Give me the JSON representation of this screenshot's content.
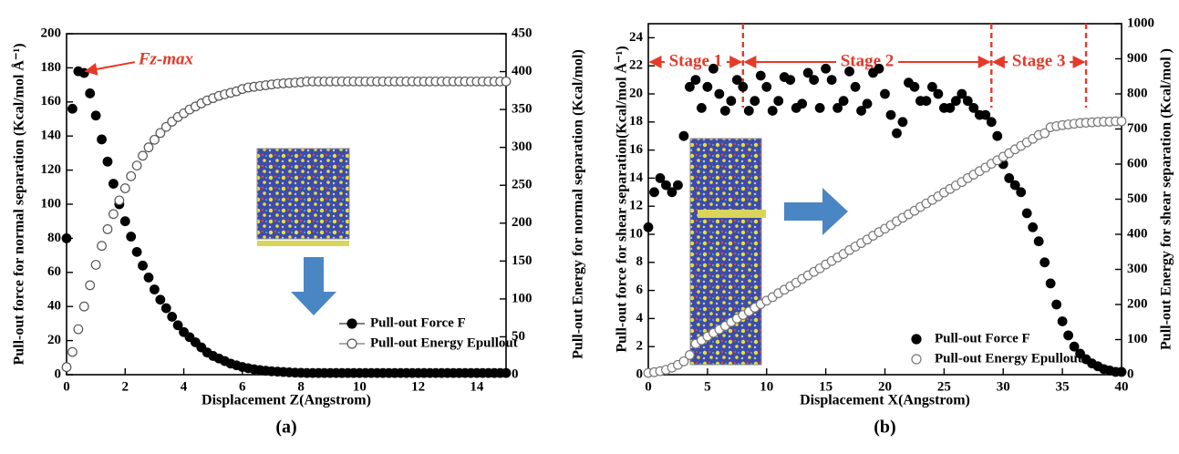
{
  "chart_data": [
    {
      "type": "scatter",
      "caption": "(a)",
      "xlabel": "Displacement Z(Angstrom)",
      "ylabel": "Pull-out force for normal separation (Kcal/mol Å⁻¹)",
      "y2label": "Pull-out Energy for normal separation  (Kcal/mol)",
      "annotation": "Fz-max",
      "xlim": [
        0,
        15
      ],
      "xticks": [
        0,
        2,
        4,
        6,
        8,
        10,
        12,
        14
      ],
      "ylim": [
        0,
        200
      ],
      "yticks": [
        0,
        20,
        40,
        60,
        80,
        100,
        120,
        140,
        160,
        180,
        200
      ],
      "y2lim": [
        0,
        450
      ],
      "y2ticks": [
        0,
        50,
        100,
        150,
        200,
        250,
        300,
        350,
        400,
        450
      ],
      "legend": "lower right",
      "x": [
        0,
        0.2,
        0.4,
        0.6,
        0.8,
        1,
        1.2,
        1.4,
        1.6,
        1.8,
        2,
        2.2,
        2.4,
        2.6,
        2.8,
        3,
        3.2,
        3.4,
        3.6,
        3.8,
        4,
        4.2,
        4.4,
        4.6,
        4.8,
        5,
        5.2,
        5.4,
        5.6,
        5.8,
        6,
        6.2,
        6.4,
        6.6,
        6.8,
        7,
        7.2,
        7.4,
        7.6,
        7.8,
        8,
        8.2,
        8.4,
        8.6,
        8.8,
        9,
        9.2,
        9.4,
        9.6,
        9.8,
        10,
        10.2,
        10.4,
        10.6,
        10.8,
        11,
        11.2,
        11.4,
        11.6,
        11.8,
        12,
        12.2,
        12.4,
        12.6,
        12.8,
        13,
        13.2,
        13.4,
        13.6,
        13.8,
        14,
        14.2,
        14.4,
        14.6,
        14.8,
        15
      ],
      "series": [
        {
          "name": "Pull-out Force F",
          "color": "#000000",
          "marker": "filled",
          "values": [
            80,
            156,
            178,
            177,
            165,
            152,
            138,
            125,
            112,
            100,
            90,
            81,
            72,
            64,
            57,
            50,
            44,
            39,
            34,
            29,
            25,
            22,
            19,
            16,
            13,
            11,
            9.5,
            8,
            6.5,
            5.5,
            4.5,
            3.8,
            3.2,
            2.7,
            2.3,
            2,
            1.8,
            1.6,
            1.4,
            1.2,
            1.1,
            1,
            1,
            1,
            1,
            1,
            1,
            1,
            1,
            1,
            1,
            1,
            1,
            1,
            1,
            1,
            1,
            1,
            1,
            1,
            1,
            1,
            1,
            1,
            1,
            1,
            1,
            1,
            1,
            1,
            1,
            1,
            1,
            1,
            1,
            1
          ]
        },
        {
          "name": "Pull-out Energy Epullout",
          "color": "#555555",
          "marker": "open",
          "axis": "y2",
          "values": [
            10,
            30,
            60,
            90,
            118,
            145,
            170,
            192,
            212,
            230,
            246,
            262,
            276,
            289,
            300,
            310,
            319,
            327,
            334,
            340,
            345,
            350,
            354,
            358,
            362,
            365,
            368,
            370,
            372,
            374,
            377,
            379,
            380,
            381,
            382,
            383,
            384,
            384.5,
            385,
            385.5,
            386,
            387,
            387,
            387,
            387,
            387,
            387,
            387,
            387,
            387,
            387,
            387,
            387,
            387,
            387,
            387,
            387,
            387,
            387,
            387,
            387,
            387,
            387,
            387,
            387,
            387,
            387,
            387,
            387,
            387,
            387,
            387,
            387,
            387,
            387,
            387
          ]
        }
      ]
    },
    {
      "type": "scatter",
      "caption": "(b)",
      "xlabel": "Displacement X(Angstrom)",
      "ylabel": "Pull-out force for shear separation(Kcal/mol Å⁻¹)",
      "y2label": "Pull-out Energy for shear separation (Kcal/mol )",
      "stages": [
        {
          "label": "Stage 1",
          "range": [
            0,
            8
          ]
        },
        {
          "label": "Stage 2",
          "range": [
            8,
            29
          ]
        },
        {
          "label": "Stage 3",
          "range": [
            29,
            37
          ]
        }
      ],
      "xlim": [
        0,
        40
      ],
      "xticks": [
        0,
        5,
        10,
        15,
        20,
        25,
        30,
        35,
        40
      ],
      "ylim": [
        0,
        25
      ],
      "yticks": [
        0,
        2,
        4,
        6,
        8,
        10,
        12,
        14,
        16,
        18,
        20,
        22,
        24
      ],
      "y2lim": [
        0,
        1000
      ],
      "y2ticks": [
        0,
        100,
        200,
        300,
        400,
        500,
        600,
        700,
        800,
        900,
        1000
      ],
      "legend": "lower right",
      "x": [
        0,
        0.5,
        1,
        1.5,
        2,
        2.5,
        3,
        3.5,
        4,
        4.5,
        5,
        5.5,
        6,
        6.5,
        7,
        7.5,
        8,
        8.5,
        9,
        9.5,
        10,
        10.5,
        11,
        11.5,
        12,
        12.5,
        13,
        13.5,
        14,
        14.5,
        15,
        15.5,
        16,
        16.5,
        17,
        17.5,
        18,
        18.5,
        19,
        19.5,
        20,
        20.5,
        21,
        21.5,
        22,
        22.5,
        23,
        23.5,
        24,
        24.5,
        25,
        25.5,
        26,
        26.5,
        27,
        27.5,
        28,
        28.5,
        29,
        29.5,
        30,
        30.5,
        31,
        31.5,
        32,
        32.5,
        33,
        33.5,
        34,
        34.5,
        35,
        35.5,
        36,
        36.5,
        37,
        37.5,
        38,
        38.5,
        39,
        39.5,
        40
      ],
      "series": [
        {
          "name": "Pull-out Force F",
          "color": "#000000",
          "marker": "filled",
          "values": [
            10.5,
            13,
            14,
            13.5,
            13,
            13.5,
            17,
            20.5,
            21,
            19,
            20.5,
            21.8,
            20,
            18.8,
            19.5,
            21,
            20.5,
            18.8,
            19.5,
            21.3,
            20.5,
            18.8,
            19.5,
            21.2,
            21,
            19,
            19.3,
            21.5,
            21,
            19,
            21.8,
            21,
            19,
            19.5,
            21.6,
            20.5,
            18.8,
            19.3,
            21.5,
            21.8,
            20,
            18.5,
            17.2,
            18,
            20.8,
            20.5,
            19.5,
            19.5,
            20.5,
            20,
            19,
            19,
            19.5,
            20,
            19.5,
            19,
            18.5,
            18.5,
            18,
            17,
            15,
            14,
            13.5,
            13,
            11.5,
            10.5,
            9.5,
            8,
            6.5,
            5,
            3.8,
            2.8,
            2,
            1.5,
            1.1,
            0.8,
            0.6,
            0.4,
            0.3,
            0.2,
            0.2
          ]
        },
        {
          "name": "Pull-out Energy Epullout",
          "color": "#777777",
          "marker": "open",
          "axis": "y2",
          "values": [
            5,
            7,
            10,
            14,
            20,
            28,
            38,
            56,
            88,
            98,
            109,
            119,
            129,
            139,
            150,
            160,
            170,
            180,
            191,
            201,
            211,
            221,
            232,
            242,
            252,
            262,
            273,
            283,
            293,
            303,
            314,
            324,
            334,
            344,
            355,
            365,
            375,
            385,
            396,
            406,
            416,
            426,
            437,
            447,
            457,
            467,
            478,
            488,
            498,
            508,
            519,
            529,
            539,
            549,
            560,
            570,
            580,
            590,
            601,
            611,
            621,
            631,
            642,
            652,
            662,
            672,
            683,
            688,
            705,
            708,
            711,
            713,
            715,
            717,
            718,
            719,
            720,
            721,
            721,
            722,
            722
          ]
        }
      ]
    }
  ]
}
